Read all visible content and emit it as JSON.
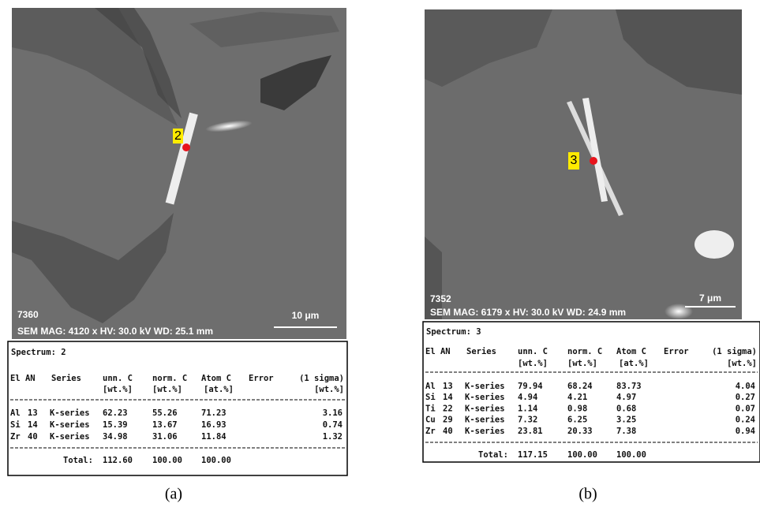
{
  "panels": [
    {
      "image": {
        "marker": "2",
        "sample_id": "7360",
        "info": "SEM MAG: 4120 x HV: 30.0 kV WD: 25.1 mm",
        "scale": "10 μm"
      },
      "table": {
        "spectrum": "Spectrum: 2",
        "header1": [
          "El AN",
          "Series",
          "unn. C",
          "norm. C",
          "Atom C",
          "Error",
          "(1 sigma)"
        ],
        "header2": [
          "[wt.%]",
          "[wt.%]",
          "[at.%]",
          "[wt.%]"
        ],
        "rows": [
          [
            "Al",
            "13",
            "K-series",
            "62.23",
            "55.26",
            "71.23",
            "3.16"
          ],
          [
            "Si",
            "14",
            "K-series",
            "15.39",
            "13.67",
            "16.93",
            "0.74"
          ],
          [
            "Zr",
            "40",
            "K-series",
            "34.98",
            "31.06",
            "11.84",
            "1.32"
          ]
        ],
        "total": [
          "Total:",
          "112.60",
          "100.00",
          "100.00"
        ]
      },
      "caption": "(a)"
    },
    {
      "image": {
        "marker": "3",
        "sample_id": "7352",
        "info": "SEM MAG: 6179 x HV: 30.0 kV WD: 24.9 mm",
        "scale": "7 μm"
      },
      "table": {
        "spectrum": "Spectrum: 3",
        "header1": [
          "El AN",
          "Series",
          "unn. C",
          "norm. C",
          "Atom C",
          "Error",
          "(1 sigma)"
        ],
        "header2": [
          "[wt.%]",
          "[wt.%]",
          "[at.%]",
          "[wt.%]"
        ],
        "rows": [
          [
            "Al",
            "13",
            "K-series",
            "79.94",
            "68.24",
            "83.73",
            "4.04"
          ],
          [
            "Si",
            "14",
            "K-series",
            "4.94",
            "4.21",
            "4.97",
            "0.27"
          ],
          [
            "Ti",
            "22",
            "K-series",
            "1.14",
            "0.98",
            "0.68",
            "0.07"
          ],
          [
            "Cu",
            "29",
            "K-series",
            "7.32",
            "6.25",
            "3.25",
            "0.24"
          ],
          [
            "Zr",
            "40",
            "K-series",
            "23.81",
            "20.33",
            "7.38",
            "0.94"
          ]
        ],
        "total": [
          "Total:",
          "117.15",
          "100.00",
          "100.00"
        ]
      },
      "caption": "(b)"
    }
  ]
}
